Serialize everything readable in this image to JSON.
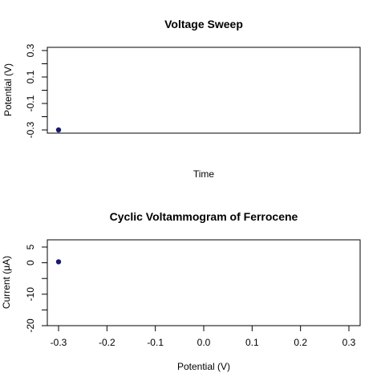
{
  "chart_data": [
    {
      "type": "line",
      "title": "Voltage Sweep",
      "xlabel": "Time",
      "ylabel": "Potential (V)",
      "x_ticks_shown": false,
      "ylim": [
        -0.3,
        0.3
      ],
      "yticks": [
        "-0.3",
        "-0.1",
        "0.1",
        "0.3"
      ],
      "minor_yticks": [
        -0.2,
        0.0,
        0.2
      ],
      "grid": false,
      "series": [
        {
          "color": "#191970",
          "points": [
            {
              "x": 0,
              "y": -0.3
            }
          ]
        }
      ]
    },
    {
      "type": "scatter",
      "title": "Cyclic Voltammogram of Ferrocene",
      "xlabel": "Potential (V)",
      "ylabel": "Current (μA)",
      "xlim": [
        -0.3,
        0.3
      ],
      "xticks": [
        "-0.3",
        "-0.2",
        "-0.1",
        "0.0",
        "0.1",
        "0.2",
        "0.3"
      ],
      "ylim": [
        -20,
        5
      ],
      "yticks": [
        "-20",
        "-10",
        "0",
        "5"
      ],
      "minor_yticks": [
        -15,
        -5
      ],
      "grid": false,
      "series": [
        {
          "color": "#191970",
          "points": [
            {
              "x": -0.3,
              "y": 0.3
            }
          ]
        }
      ]
    }
  ]
}
